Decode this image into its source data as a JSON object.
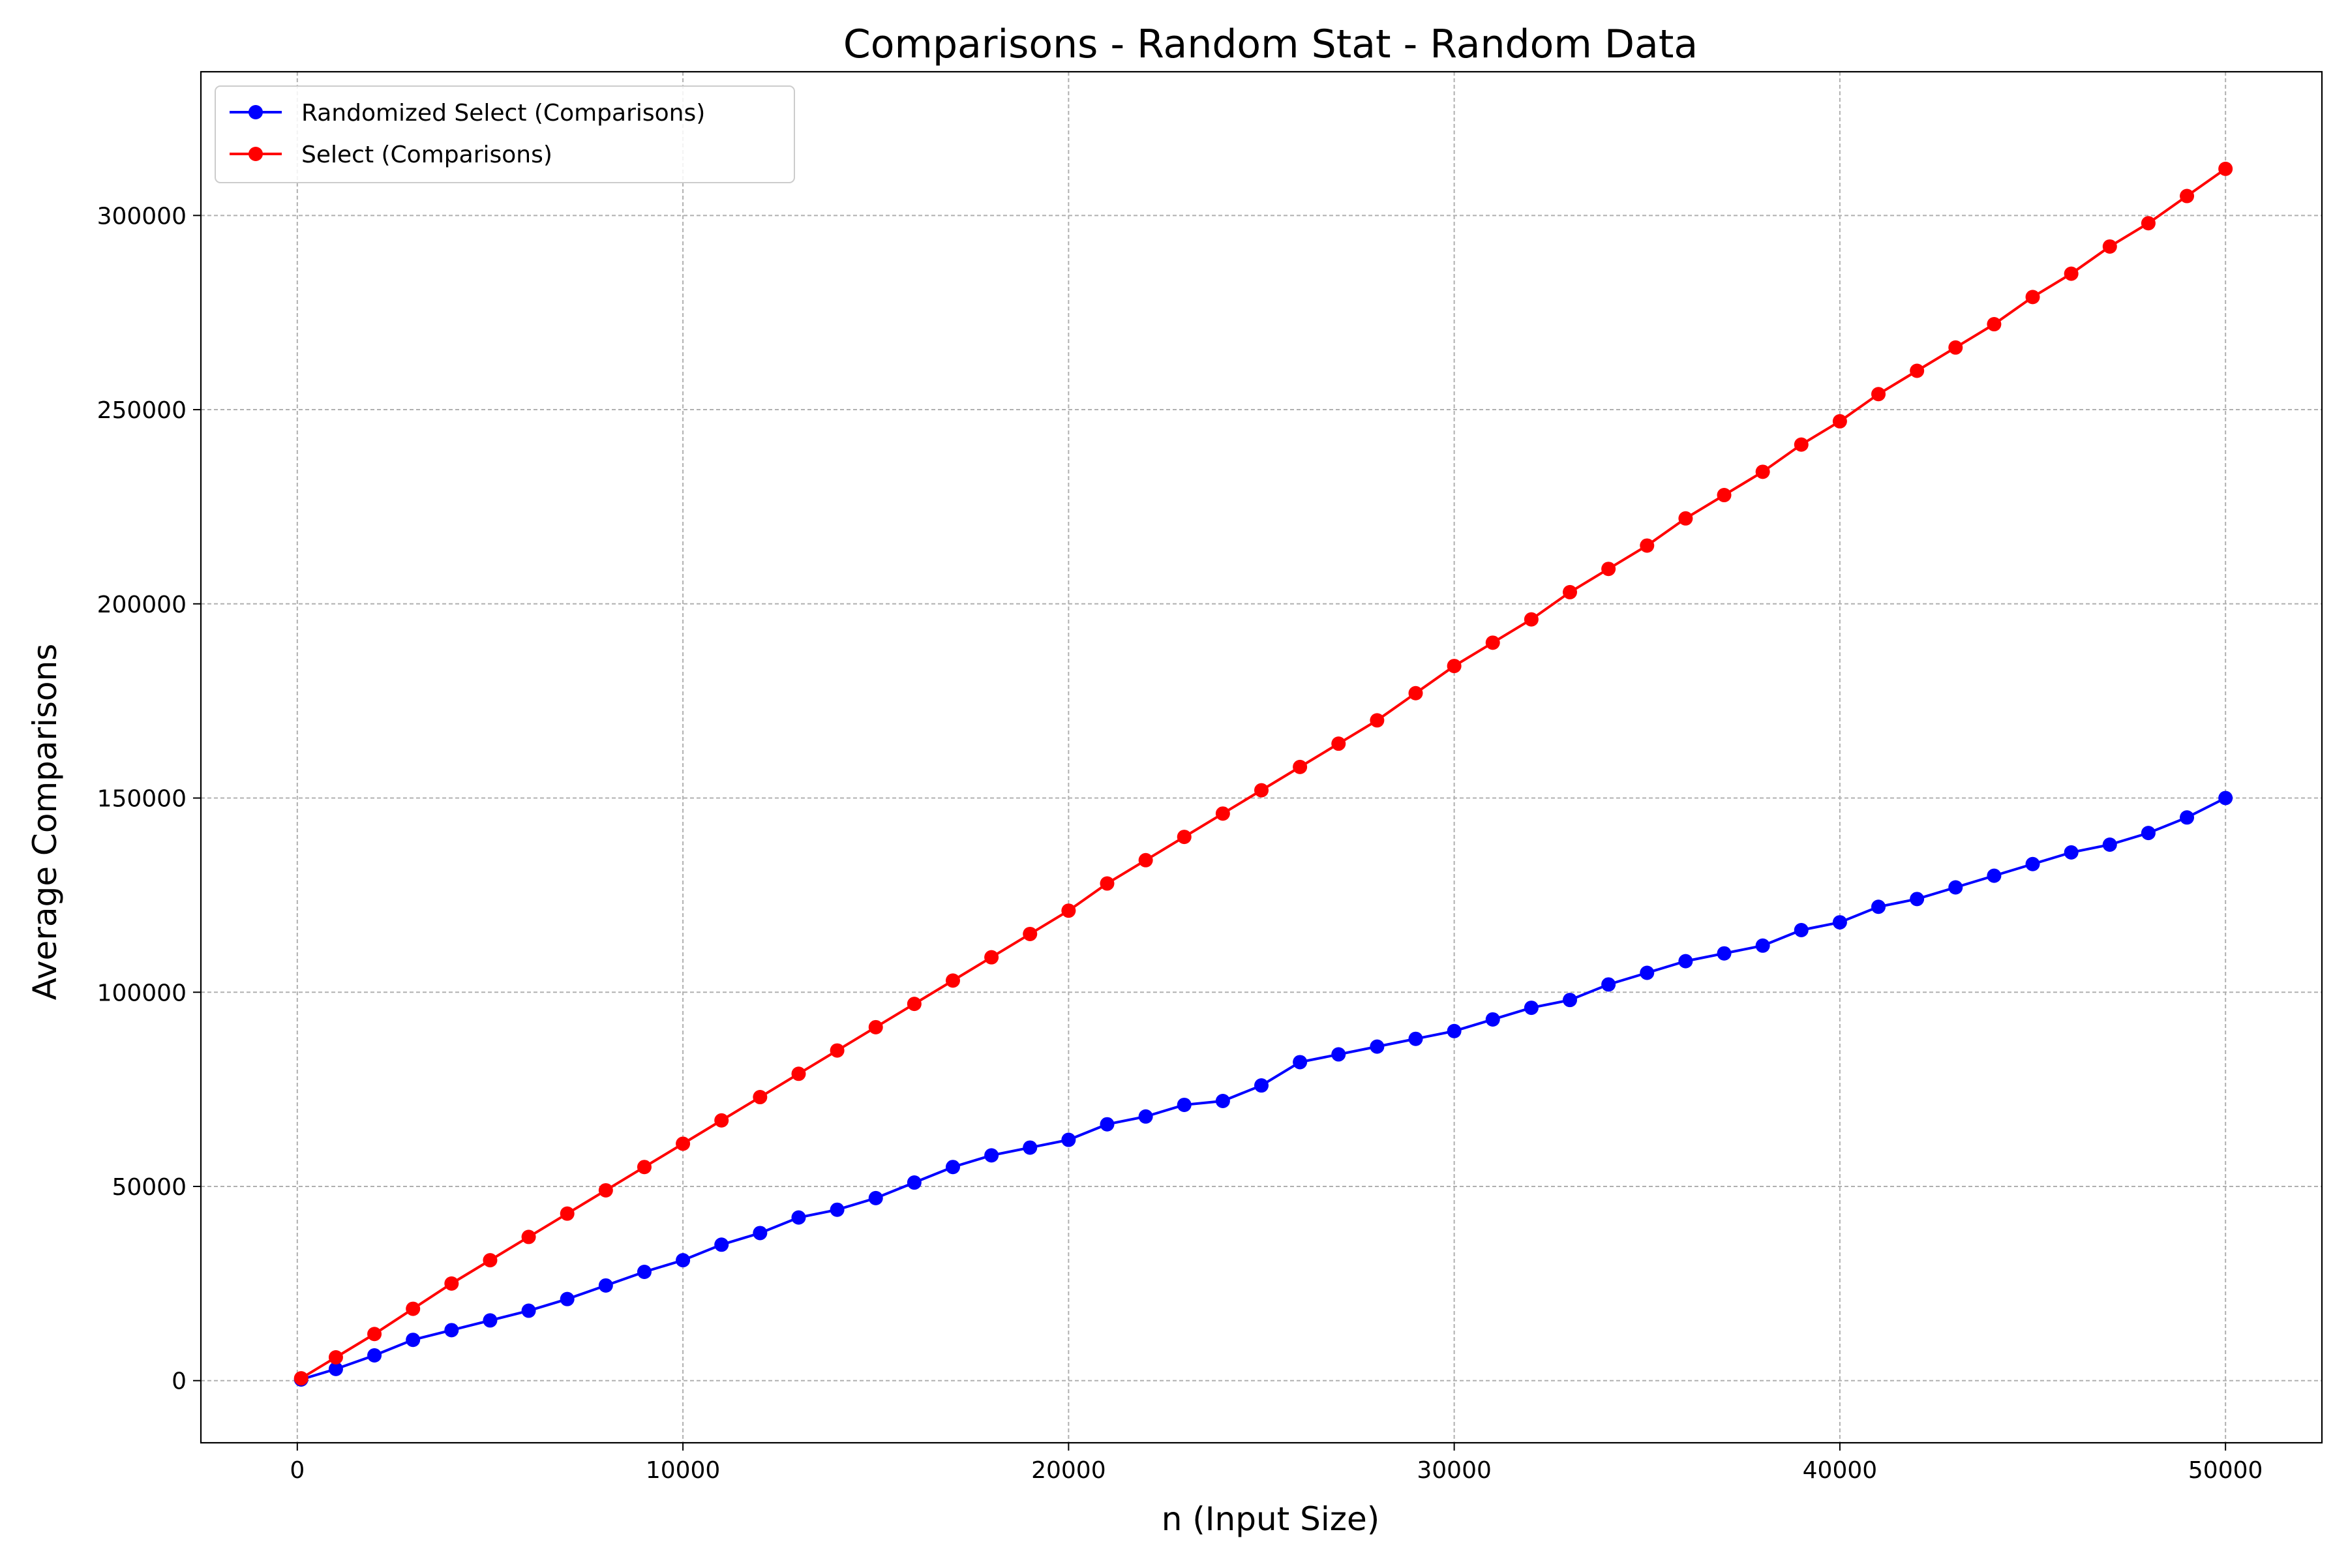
{
  "chart_data": {
    "type": "line",
    "title": "Comparisons - Random Stat - Random Data",
    "xlabel": "n (Input Size)",
    "ylabel": "Average Comparisons",
    "xlim": [
      -2500,
      52500
    ],
    "ylim": [
      -16000,
      337000
    ],
    "x_ticks": [
      0,
      10000,
      20000,
      30000,
      40000,
      50000
    ],
    "y_ticks": [
      0,
      50000,
      100000,
      150000,
      200000,
      250000,
      300000
    ],
    "grid": true,
    "legend_position": "top-left",
    "markers": true,
    "series": [
      {
        "name": "Randomized Select (Comparisons)",
        "color": "#0000ff",
        "x": [
          100,
          1000,
          2000,
          3000,
          4000,
          5000,
          6000,
          7000,
          8000,
          9000,
          10000,
          11000,
          12000,
          13000,
          14000,
          15000,
          16000,
          17000,
          18000,
          19000,
          20000,
          21000,
          22000,
          23000,
          24000,
          25000,
          26000,
          27000,
          28000,
          29000,
          30000,
          31000,
          32000,
          33000,
          34000,
          35000,
          36000,
          37000,
          38000,
          39000,
          40000,
          41000,
          42000,
          43000,
          44000,
          45000,
          46000,
          47000,
          48000,
          49000,
          50000
        ],
        "values": [
          300,
          3000,
          6500,
          10500,
          13000,
          15500,
          18000,
          21000,
          24500,
          28000,
          31000,
          35000,
          38000,
          42000,
          44000,
          47000,
          51000,
          55000,
          58000,
          60000,
          62000,
          66000,
          68000,
          71000,
          72000,
          76000,
          82000,
          84000,
          86000,
          88000,
          90000,
          93000,
          96000,
          98000,
          102000,
          105000,
          108000,
          110000,
          112000,
          116000,
          118000,
          122000,
          124000,
          127000,
          130000,
          133000,
          136000,
          138000,
          141000,
          145000,
          150000
        ]
      },
      {
        "name": "Select (Comparisons)",
        "color": "#ff0000",
        "x": [
          100,
          1000,
          2000,
          3000,
          4000,
          5000,
          6000,
          7000,
          8000,
          9000,
          10000,
          11000,
          12000,
          13000,
          14000,
          15000,
          16000,
          17000,
          18000,
          19000,
          20000,
          21000,
          22000,
          23000,
          24000,
          25000,
          26000,
          27000,
          28000,
          29000,
          30000,
          31000,
          32000,
          33000,
          34000,
          35000,
          36000,
          37000,
          38000,
          39000,
          40000,
          41000,
          42000,
          43000,
          44000,
          45000,
          46000,
          47000,
          48000,
          49000,
          50000
        ],
        "values": [
          600,
          6000,
          12000,
          18500,
          25000,
          31000,
          37000,
          43000,
          49000,
          55000,
          61000,
          67000,
          73000,
          79000,
          85000,
          91000,
          97000,
          103000,
          109000,
          115000,
          121000,
          128000,
          134000,
          140000,
          146000,
          152000,
          158000,
          164000,
          170000,
          177000,
          184000,
          190000,
          196000,
          203000,
          209000,
          215000,
          222000,
          228000,
          234000,
          241000,
          247000,
          254000,
          260000,
          266000,
          272000,
          279000,
          285000,
          292000,
          298000,
          305000,
          312000
        ]
      }
    ]
  }
}
